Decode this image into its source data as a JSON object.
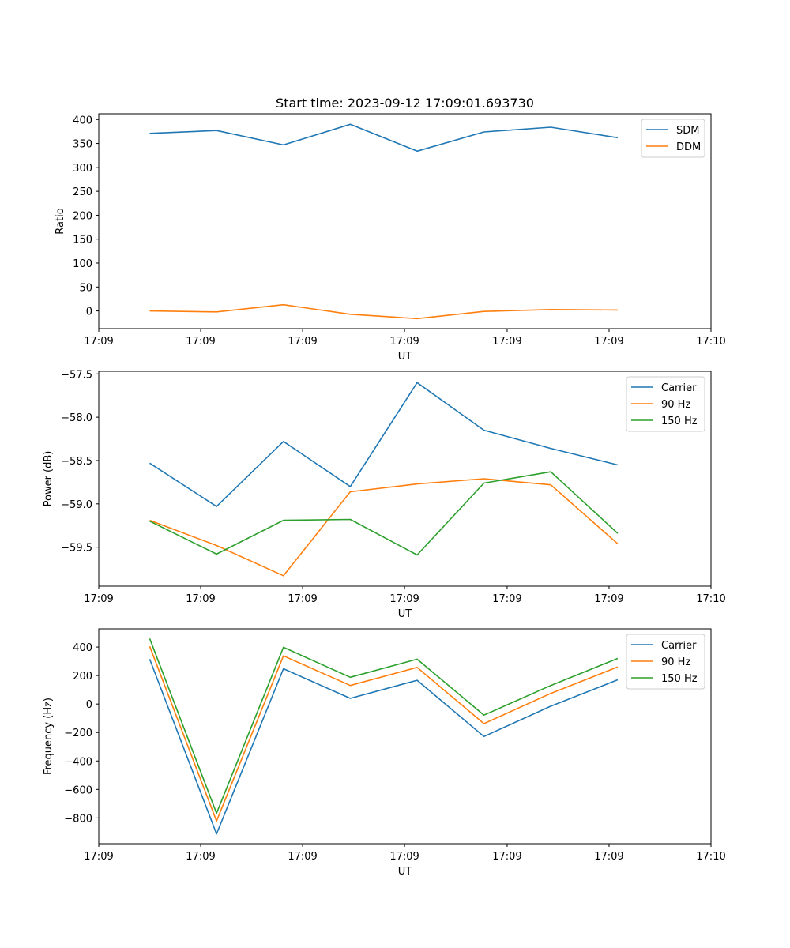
{
  "title": "Start time: 2023-09-12 17:09:01.693730",
  "colors": {
    "blue": "#1f77b4",
    "orange": "#ff7f0e",
    "green": "#2ca02c"
  },
  "chart_data": [
    {
      "type": "line",
      "title": "Start time: 2023-09-12 17:09:01.693730",
      "xlabel": "UT",
      "ylabel": "Ratio",
      "xlim": [
        0,
        9.25
      ],
      "ylim": [
        -37,
        412
      ],
      "xticks": [
        0,
        1.54,
        3.08,
        4.62,
        6.17,
        7.71,
        9.25
      ],
      "xtick_labels": [
        "17:09",
        "17:09",
        "17:09",
        "17:09",
        "17:09",
        "17:09",
        "17:10"
      ],
      "yticks": [
        0,
        50,
        100,
        150,
        200,
        250,
        300,
        350,
        400
      ],
      "ytick_labels": [
        "0",
        "50",
        "100",
        "150",
        "200",
        "250",
        "300",
        "350",
        "400"
      ],
      "x": [
        0.77,
        1.78,
        2.79,
        3.8,
        4.81,
        5.82,
        6.83,
        7.84
      ],
      "legend": "top-right",
      "series": [
        {
          "name": "SDM",
          "color": "#1f77b4",
          "values": [
            371,
            377,
            347,
            390,
            334,
            374,
            384,
            362
          ]
        },
        {
          "name": "DDM",
          "color": "#ff7f0e",
          "values": [
            0,
            -2,
            13,
            -7,
            -16,
            -1,
            3,
            2
          ]
        }
      ]
    },
    {
      "type": "line",
      "title": "",
      "xlabel": "UT",
      "ylabel": "Power (dB)",
      "xlim": [
        0,
        9.25
      ],
      "ylim": [
        -59.95,
        -57.47
      ],
      "xticks": [
        0,
        1.54,
        3.08,
        4.62,
        6.17,
        7.71,
        9.25
      ],
      "xtick_labels": [
        "17:09",
        "17:09",
        "17:09",
        "17:09",
        "17:09",
        "17:09",
        "17:10"
      ],
      "yticks": [
        -57.5,
        -58.0,
        -58.5,
        -59.0,
        -59.5
      ],
      "ytick_labels": [
        "−57.5",
        "−58.0",
        "−58.5",
        "−59.0",
        "−59.5"
      ],
      "x": [
        0.77,
        1.78,
        2.79,
        3.8,
        4.81,
        5.82,
        6.83,
        7.84
      ],
      "legend": "top-right",
      "series": [
        {
          "name": "Carrier",
          "color": "#1f77b4",
          "values": [
            -58.53,
            -59.03,
            -58.28,
            -58.8,
            -57.6,
            -58.15,
            -58.36,
            -58.55
          ]
        },
        {
          "name": "90 Hz",
          "color": "#ff7f0e",
          "values": [
            -59.19,
            -59.48,
            -59.83,
            -58.86,
            -58.77,
            -58.71,
            -58.78,
            -59.46
          ]
        },
        {
          "name": "150 Hz",
          "color": "#2ca02c",
          "values": [
            -59.2,
            -59.58,
            -59.19,
            -59.18,
            -59.59,
            -58.76,
            -58.63,
            -59.34
          ]
        }
      ]
    },
    {
      "type": "line",
      "title": "",
      "xlabel": "UT",
      "ylabel": "Frequency (Hz)",
      "xlim": [
        0,
        9.25
      ],
      "ylim": [
        -981,
        528
      ],
      "xticks": [
        0,
        1.54,
        3.08,
        4.62,
        6.17,
        7.71,
        9.25
      ],
      "xtick_labels": [
        "17:09",
        "17:09",
        "17:09",
        "17:09",
        "17:09",
        "17:09",
        "17:10"
      ],
      "yticks": [
        400,
        200,
        0,
        -200,
        -400,
        -600,
        -800
      ],
      "ytick_labels": [
        "400",
        "200",
        "0",
        "−200",
        "−400",
        "−600",
        "−800"
      ],
      "x": [
        0.77,
        1.78,
        2.79,
        3.8,
        4.81,
        5.82,
        6.83,
        7.84
      ],
      "legend": "top-right",
      "series": [
        {
          "name": "Carrier",
          "color": "#1f77b4",
          "values": [
            315,
            -912,
            248,
            40,
            167,
            -228,
            -15,
            170
          ]
        },
        {
          "name": "90 Hz",
          "color": "#ff7f0e",
          "values": [
            405,
            -822,
            338,
            130,
            257,
            -138,
            75,
            260
          ]
        },
        {
          "name": "150 Hz",
          "color": "#2ca02c",
          "values": [
            460,
            -767,
            398,
            188,
            315,
            -78,
            130,
            320
          ]
        }
      ]
    }
  ]
}
